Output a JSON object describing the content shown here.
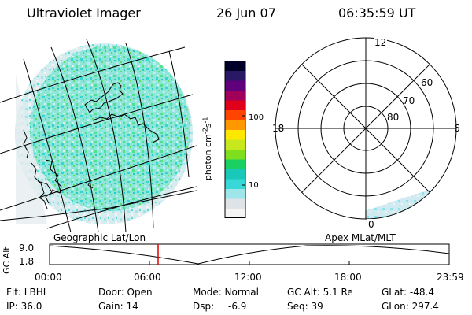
{
  "header": {
    "title": "Ultraviolet Imager",
    "date": "26 Jun 07",
    "time": "06:35:59 UT"
  },
  "colorbar": {
    "label": "photon cm",
    "label_exp1": "-2",
    "label_s": "s",
    "label_exp2": "-1",
    "ticks": [
      "100",
      "10"
    ],
    "colors": [
      "#f5f5f5",
      "#dde3e6",
      "#9fe6ea",
      "#38d8d8",
      "#18c8b8",
      "#1ad060",
      "#7ee01c",
      "#c8e81e",
      "#ffe800",
      "#ff9800",
      "#ff4400",
      "#e0001a",
      "#a0005a",
      "#60007a",
      "#281866",
      "#000028"
    ]
  },
  "polar": {
    "mlt_labels": {
      "top": "12",
      "left": "18",
      "right": "6",
      "bottom": "0"
    },
    "lat_labels": [
      "60",
      "70",
      "80"
    ]
  },
  "timeline": {
    "left_title": "Geographic Lat/Lon",
    "right_title": "Apex MLat/MLT",
    "ylabel": "GC Alt",
    "ymax": "9.0",
    "ymin": "1.8",
    "xticks": [
      "00:00",
      "06:00",
      "12:00",
      "18:00",
      "23:59"
    ],
    "marker_time": "06:35:59"
  },
  "status": {
    "flt": "Flt: LBHL",
    "door": "Door: Open",
    "mode": "Mode: Normal",
    "gcalt": "GC Alt: 5.1 Re",
    "glat": "GLat: -48.4",
    "ip": "IP: 36.0",
    "gain": "Gain: 14",
    "dsp": "Dsp:",
    "dsp_val": "-6.9",
    "seq": "Seq: 39",
    "glon": "GLon: 297.4"
  }
}
